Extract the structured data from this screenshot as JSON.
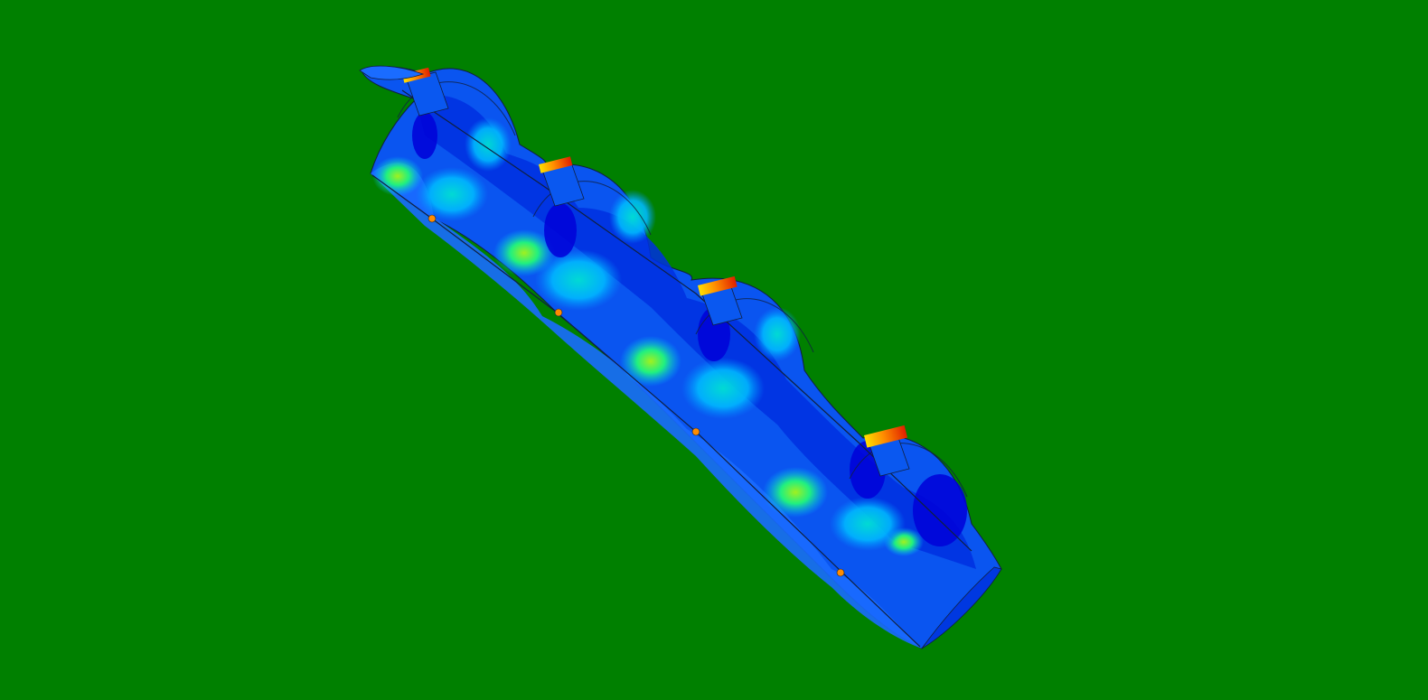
{
  "viewport": {
    "background_color": "#008000",
    "model_description_shown": false
  },
  "model": {
    "kind": "corrugated-tube-cutaway",
    "corrugation_count": 4,
    "contour_palette": [
      "#0000d8",
      "#0046ff",
      "#008cff",
      "#00c0ff",
      "#00e8d0",
      "#20f080",
      "#a0f020",
      "#ffe000",
      "#ff8c00",
      "#e02000"
    ],
    "dominant_color": "#0a55f0",
    "outline_color": "#102040"
  }
}
